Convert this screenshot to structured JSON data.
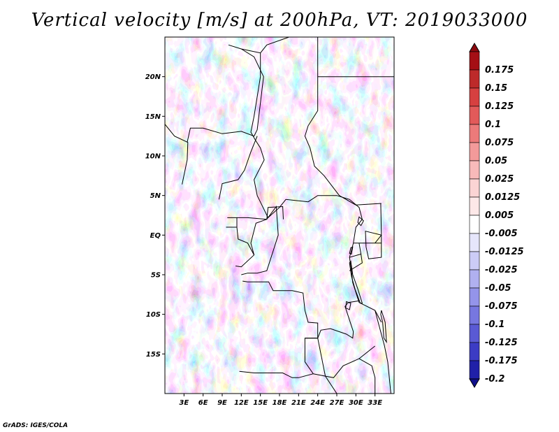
{
  "title": "Vertical velocity [m/s] at 200hPa, VT: 2019033000",
  "credit": "GrADS: IGES/COLA",
  "map": {
    "lat_range": [
      -20,
      25
    ],
    "lon_range": [
      0,
      36
    ],
    "lat_labels": [
      {
        "value": 20,
        "label": "20N"
      },
      {
        "value": 15,
        "label": "15N"
      },
      {
        "value": 10,
        "label": "10N"
      },
      {
        "value": 5,
        "label": "5N"
      },
      {
        "value": 0,
        "label": "EQ"
      },
      {
        "value": -5,
        "label": "5S"
      },
      {
        "value": -10,
        "label": "10S"
      },
      {
        "value": -15,
        "label": "15S"
      }
    ],
    "lon_labels": [
      {
        "value": 3,
        "label": "3E"
      },
      {
        "value": 6,
        "label": "6E"
      },
      {
        "value": 9,
        "label": "9E"
      },
      {
        "value": 12,
        "label": "12E"
      },
      {
        "value": 15,
        "label": "15E"
      },
      {
        "value": 18,
        "label": "18E"
      },
      {
        "value": 21,
        "label": "21E"
      },
      {
        "value": 24,
        "label": "24E"
      },
      {
        "value": 27,
        "label": "27E"
      },
      {
        "value": 30,
        "label": "30E"
      },
      {
        "value": 33,
        "label": "33E"
      }
    ]
  },
  "colorbar": {
    "levels": [
      {
        "label": "0.175",
        "color": "#a50f15"
      },
      {
        "label": "0.15",
        "color": "#bd2a2a"
      },
      {
        "label": "0.125",
        "color": "#d64040"
      },
      {
        "label": "0.1",
        "color": "#e25a5a"
      },
      {
        "label": "0.075",
        "color": "#ec7a7a"
      },
      {
        "label": "0.05",
        "color": "#f39a9a"
      },
      {
        "label": "0.025",
        "color": "#f8baba"
      },
      {
        "label": "0.0125",
        "color": "#fbd4d4"
      },
      {
        "label": "0.005",
        "color": "#fde8e8"
      },
      {
        "label": "-0.005",
        "color": "#ffffff"
      },
      {
        "label": "-0.0125",
        "color": "#e6e6fb"
      },
      {
        "label": "-0.025",
        "color": "#ccccf6"
      },
      {
        "label": "-0.05",
        "color": "#b0b0f0"
      },
      {
        "label": "-0.075",
        "color": "#9494ea"
      },
      {
        "label": "-0.1",
        "color": "#7777e0"
      },
      {
        "label": "-0.125",
        "color": "#5a5ad4"
      },
      {
        "label": "-0.175",
        "color": "#3c3cc4"
      },
      {
        "label": "-0.2",
        "color": "#2020a8"
      }
    ],
    "top_color": "#8c0a0f",
    "bottom_color": "#10108c"
  }
}
